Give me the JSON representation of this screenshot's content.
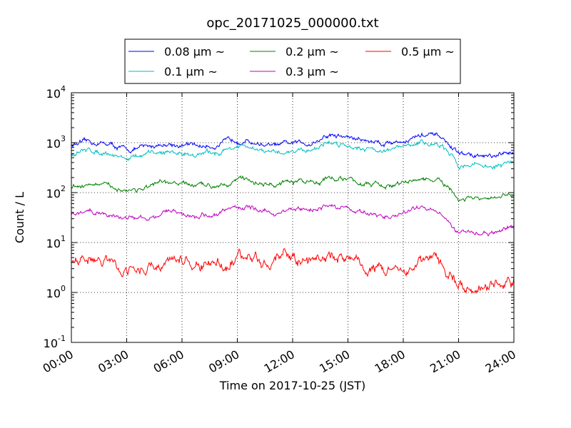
{
  "chart_data": {
    "type": "line",
    "title": "opc_20171025_000000.txt",
    "xlabel": "Time on 2017-10-25 (JST)",
    "ylabel": "Count / L",
    "y_scale": "log",
    "xlim": [
      "2017-10-25T00:00",
      "2017-10-26T00:00"
    ],
    "ylim": [
      0.1,
      10000
    ],
    "grid": true,
    "legend_position": "top",
    "x_ticks": [
      "00:00",
      "03:00",
      "06:00",
      "09:00",
      "12:00",
      "15:00",
      "18:00",
      "21:00",
      "24:00"
    ],
    "y_ticks": [
      {
        "base": "10",
        "exp": "-1"
      },
      {
        "base": "10",
        "exp": "0"
      },
      {
        "base": "10",
        "exp": "1"
      },
      {
        "base": "10",
        "exp": "2"
      },
      {
        "base": "10",
        "exp": "3"
      },
      {
        "base": "10",
        "exp": "4"
      }
    ],
    "x_hours": [
      0,
      1,
      2,
      3,
      4,
      5,
      6,
      7,
      8,
      9,
      10,
      11,
      12,
      13,
      14,
      15,
      16,
      17,
      18,
      19,
      20,
      21,
      22,
      23,
      24
    ],
    "series": [
      {
        "name": "0.08 μm ~",
        "color": "#0000ff",
        "values": [
          900,
          1000,
          950,
          700,
          800,
          950,
          900,
          850,
          900,
          1200,
          1000,
          850,
          950,
          1000,
          1400,
          1300,
          1100,
          1000,
          1100,
          1400,
          1300,
          600,
          550,
          500,
          650
        ]
      },
      {
        "name": "0.1 μm ~",
        "color": "#00bfbf",
        "values": [
          600,
          700,
          650,
          480,
          550,
          650,
          620,
          580,
          650,
          850,
          700,
          600,
          700,
          750,
          1000,
          900,
          800,
          700,
          800,
          1000,
          900,
          350,
          380,
          320,
          420
        ]
      },
      {
        "name": "0.2 μm ~",
        "color": "#008000",
        "values": [
          135,
          150,
          130,
          115,
          120,
          150,
          145,
          135,
          150,
          190,
          165,
          140,
          160,
          165,
          200,
          180,
          150,
          130,
          150,
          190,
          170,
          70,
          75,
          70,
          100
        ]
      },
      {
        "name": "0.3 μm ~",
        "color": "#bf00bf",
        "values": [
          35,
          40,
          38,
          30,
          32,
          40,
          38,
          33,
          38,
          55,
          45,
          38,
          45,
          45,
          55,
          50,
          38,
          32,
          38,
          50,
          45,
          15,
          16,
          15,
          22
        ]
      },
      {
        "name": "0.5 μm ~",
        "color": "#ff0000",
        "values": [
          4,
          4.5,
          4,
          3,
          3,
          3.8,
          4,
          3.5,
          3.7,
          5,
          4.8,
          4,
          4.5,
          4.5,
          5.5,
          4.8,
          3.5,
          2.8,
          3.2,
          4.2,
          4,
          1.3,
          1.4,
          1.4,
          1.6
        ]
      }
    ]
  }
}
